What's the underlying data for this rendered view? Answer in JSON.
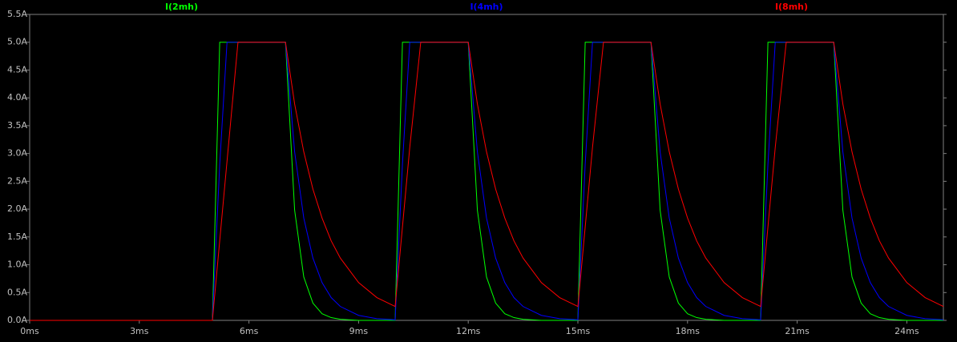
{
  "chart_data": {
    "type": "line",
    "x": [
      0,
      5,
      5.2,
      5.4,
      5.7,
      7,
      7.25,
      7.5,
      7.75,
      8,
      8.25,
      8.5,
      9,
      9.5,
      10,
      10.2,
      10.4,
      10.7,
      12,
      12.25,
      12.5,
      12.75,
      13,
      13.25,
      13.5,
      14,
      14.5,
      15,
      15.2,
      15.4,
      15.7,
      17,
      17.25,
      17.5,
      17.75,
      18,
      18.25,
      18.5,
      19,
      19.5,
      20,
      20.2,
      20.4,
      20.7,
      22,
      22.25,
      22.5,
      22.75,
      23,
      23.25,
      23.5,
      24,
      24.5,
      25
    ],
    "series": [
      {
        "name": "I(2mh)",
        "color": "#00ff00",
        "values": [
          0,
          0,
          5,
          5,
          5,
          5,
          1.98,
          0.78,
          0.31,
          0.12,
          0.05,
          0.02,
          0,
          0,
          0,
          5,
          5,
          5,
          5,
          1.98,
          0.78,
          0.31,
          0.12,
          0.05,
          0.02,
          0,
          0,
          0,
          5,
          5,
          5,
          5,
          1.98,
          0.78,
          0.31,
          0.12,
          0.05,
          0.02,
          0,
          0,
          0,
          5,
          5,
          5,
          5,
          1.98,
          0.78,
          0.31,
          0.12,
          0.05,
          0.02,
          0,
          0,
          0
        ]
      },
      {
        "name": "I(4mh)",
        "color": "#0000ff",
        "values": [
          0,
          0,
          2.8,
          5,
          5,
          5,
          3.03,
          1.84,
          1.12,
          0.68,
          0.41,
          0.25,
          0.09,
          0.03,
          0.01,
          2.81,
          5,
          5,
          5,
          3.03,
          1.84,
          1.12,
          0.68,
          0.41,
          0.25,
          0.09,
          0.03,
          0.01,
          2.81,
          5,
          5,
          5,
          3.03,
          1.84,
          1.12,
          0.68,
          0.41,
          0.25,
          0.09,
          0.03,
          0.01,
          2.81,
          5,
          5,
          5,
          3.03,
          1.84,
          1.12,
          0.68,
          0.41,
          0.25,
          0.09,
          0.03,
          0.01
        ]
      },
      {
        "name": "I(8mh)",
        "color": "#ff0000",
        "values": [
          0,
          0,
          1.43,
          2.86,
          5,
          5,
          3.89,
          3.03,
          2.36,
          1.84,
          1.43,
          1.12,
          0.68,
          0.41,
          0.25,
          1.68,
          3.11,
          5,
          5,
          3.89,
          3.03,
          2.36,
          1.84,
          1.43,
          1.12,
          0.68,
          0.41,
          0.25,
          1.68,
          3.11,
          5,
          5,
          3.89,
          3.03,
          2.36,
          1.84,
          1.43,
          1.12,
          0.68,
          0.41,
          0.25,
          1.68,
          3.11,
          5,
          5,
          3.89,
          3.03,
          2.36,
          1.84,
          1.43,
          1.12,
          0.68,
          0.41,
          0.25
        ]
      }
    ],
    "xlim": [
      0,
      25
    ],
    "ylim": [
      0,
      5.5
    ],
    "xticks": [
      {
        "value": 0,
        "label": "0ms"
      },
      {
        "value": 3,
        "label": "3ms"
      },
      {
        "value": 6,
        "label": "6ms"
      },
      {
        "value": 9,
        "label": "9ms"
      },
      {
        "value": 12,
        "label": "12ms"
      },
      {
        "value": 15,
        "label": "15ms"
      },
      {
        "value": 18,
        "label": "18ms"
      },
      {
        "value": 21,
        "label": "21ms"
      },
      {
        "value": 24,
        "label": "24ms"
      }
    ],
    "yticks": [
      {
        "value": 0,
        "label": "0.0A"
      },
      {
        "value": 0.5,
        "label": "0.5A"
      },
      {
        "value": 1,
        "label": "1.0A"
      },
      {
        "value": 1.5,
        "label": "1.5A"
      },
      {
        "value": 2,
        "label": "2.0A"
      },
      {
        "value": 2.5,
        "label": "2.5A"
      },
      {
        "value": 3,
        "label": "3.0A"
      },
      {
        "value": 3.5,
        "label": "3.5A"
      },
      {
        "value": 4,
        "label": "4.0A"
      },
      {
        "value": 4.5,
        "label": "4.5A"
      },
      {
        "value": 5,
        "label": "5.0A"
      },
      {
        "value": 5.5,
        "label": "5.5A"
      }
    ],
    "grid": false
  }
}
